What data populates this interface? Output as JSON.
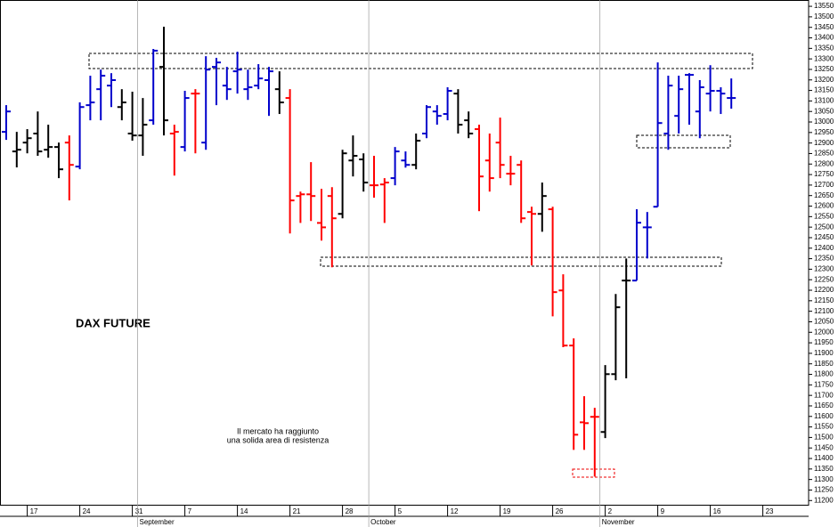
{
  "chart_data": {
    "type": "ohlc",
    "title": "DAX FUTURE",
    "annotation": [
      "Il mercato ha raggiunto",
      "una solida area di resistenza"
    ],
    "categories": [
      null,
      null,
      "17",
      null,
      null,
      null,
      null,
      "24",
      null,
      null,
      null,
      null,
      "31",
      null,
      null,
      null,
      null,
      "7",
      null,
      null,
      null,
      null,
      "14",
      null,
      null,
      null,
      null,
      "21",
      null,
      null,
      null,
      null,
      "28",
      null,
      null,
      null,
      null,
      "5",
      null,
      null,
      null,
      null,
      "12",
      null,
      null,
      null,
      null,
      "19",
      null,
      null,
      null,
      null,
      "26",
      null,
      null,
      null,
      null,
      "2",
      null,
      null,
      null,
      null,
      "9",
      null,
      null,
      null,
      null,
      "16",
      null,
      null,
      null,
      null,
      "23",
      null,
      null,
      null,
      null
    ],
    "months": [
      "September",
      "October",
      "November"
    ],
    "open": [
      12953,
      12860,
      12902,
      12945,
      12868,
      12881,
      12902,
      12788,
      13080,
      13156,
      13173,
      13071,
      12945,
      12936,
      13008,
      13262,
      12945,
      12881,
      13135,
      12902,
      13262,
      13173,
      13241,
      13156,
      13173,
      13199,
      13156,
      13114,
      12648,
      12656,
      12520,
      12648,
      12563,
      12817,
      12822,
      12699,
      12703,
      12733,
      12817,
      12796,
      12945,
      13050,
      13038,
      13135,
      13008,
      12966,
      12817,
      12902,
      12754,
      12796,
      12572,
      12563,
      12585,
      12199,
      11937,
      11572,
      11598,
      11526,
      11801,
      12246,
      12246,
      12499,
      12597,
      12945,
      13029,
      13224,
      13050,
      13135,
      13148,
      13114,
      null,
      null,
      null,
      null,
      null,
      null,
      null
    ],
    "high": [
      13080,
      12953,
      12966,
      13050,
      12987,
      12902,
      12936,
      13093,
      13220,
      13249,
      13232,
      13156,
      13144,
      13114,
      13347,
      13453,
      12987,
      13148,
      13156,
      13313,
      13305,
      13262,
      13334,
      13249,
      13275,
      13262,
      13241,
      13156,
      12669,
      12809,
      12682,
      12690,
      12868,
      12936,
      12851,
      12839,
      12733,
      12881,
      12860,
      12945,
      13080,
      13080,
      13165,
      13156,
      13050,
      12987,
      12945,
      13021,
      12839,
      12817,
      12597,
      12712,
      12597,
      12276,
      11971,
      11696,
      11641,
      11844,
      12182,
      12351,
      12585,
      12572,
      13283,
      13220,
      13220,
      13232,
      13199,
      13270,
      13165,
      13207,
      null,
      null,
      null,
      null,
      null,
      null,
      null
    ],
    "low": [
      12915,
      12784,
      12851,
      12839,
      12830,
      12733,
      12627,
      12775,
      13008,
      13008,
      13071,
      13008,
      12911,
      12839,
      12987,
      12936,
      12745,
      12860,
      12851,
      12868,
      13080,
      13105,
      13135,
      13105,
      13156,
      13029,
      13038,
      12470,
      12520,
      12529,
      12436,
      12309,
      12542,
      12741,
      12669,
      12640,
      12520,
      12699,
      12783,
      12775,
      12923,
      12987,
      13008,
      12945,
      12923,
      12576,
      12669,
      12733,
      12699,
      12520,
      12318,
      12478,
      12076,
      11929,
      11441,
      11441,
      11314,
      11497,
      11772,
      11781,
      12246,
      12351,
      12597,
      12868,
      12945,
      12987,
      12923,
      13050,
      13038,
      13063,
      null,
      null,
      null,
      null,
      null,
      null,
      null
    ],
    "close": [
      13050,
      12868,
      12923,
      12860,
      12881,
      12775,
      12796,
      13071,
      13093,
      13220,
      13199,
      13093,
      12936,
      12987,
      13339,
      13008,
      12953,
      13114,
      13135,
      13249,
      13283,
      13156,
      13249,
      13165,
      13207,
      13241,
      13093,
      12627,
      12656,
      12648,
      12499,
      12542,
      12851,
      12839,
      12712,
      12699,
      12712,
      12860,
      12796,
      12911,
      13071,
      13029,
      13148,
      12987,
      12945,
      12741,
      12733,
      12796,
      12754,
      12542,
      12563,
      12648,
      12191,
      11937,
      11513,
      11568,
      11598,
      11801,
      12119,
      12246,
      12521,
      12499,
      12995,
      13173,
      13156,
      13224,
      13165,
      13148,
      13135,
      13114,
      null,
      null,
      null,
      null,
      null,
      null,
      null
    ],
    "colors": [
      "#0000cc",
      "#000000",
      "#000000",
      "#000000",
      "#000000",
      "#000000",
      "#ff0000",
      "#0000cc",
      "#0000cc",
      "#0000cc",
      "#0000cc",
      "#000000",
      "#000000",
      "#000000",
      "#0000cc",
      "#000000",
      "#ff0000",
      "#0000cc",
      "#ff0000",
      "#0000cc",
      "#0000cc",
      "#0000cc",
      "#0000cc",
      "#0000cc",
      "#0000cc",
      "#0000cc",
      "#000000",
      "#ff0000",
      "#ff0000",
      "#ff0000",
      "#ff0000",
      "#ff0000",
      "#000000",
      "#000000",
      "#000000",
      "#ff0000",
      "#ff0000",
      "#0000cc",
      "#0000cc",
      "#000000",
      "#0000cc",
      "#0000cc",
      "#0000cc",
      "#000000",
      "#000000",
      "#ff0000",
      "#ff0000",
      "#ff0000",
      "#ff0000",
      "#ff0000",
      "#ff0000",
      "#000000",
      "#ff0000",
      "#ff0000",
      "#ff0000",
      "#ff0000",
      "#ff0000",
      "#000000",
      "#000000",
      "#000000",
      "#0000cc",
      "#0000cc",
      "#0000cc",
      "#0000cc",
      "#0000cc",
      "#0000cc",
      "#0000cc",
      "#0000cc",
      "#0000cc",
      "#0000cc",
      null,
      null,
      null,
      null,
      null,
      null,
      null
    ],
    "ylim": [
      11180,
      13580
    ],
    "yticks": [
      11200,
      11250,
      11300,
      11350,
      11400,
      11450,
      11500,
      11550,
      11600,
      11650,
      11700,
      11750,
      11800,
      11850,
      11900,
      11950,
      12000,
      12050,
      12100,
      12150,
      12200,
      12250,
      12300,
      12350,
      12400,
      12450,
      12500,
      12550,
      12600,
      12650,
      12700,
      12750,
      12800,
      12850,
      12900,
      12950,
      13000,
      13050,
      13100,
      13150,
      13200,
      13250,
      13300,
      13350,
      13400,
      13450,
      13500,
      13550
    ]
  }
}
